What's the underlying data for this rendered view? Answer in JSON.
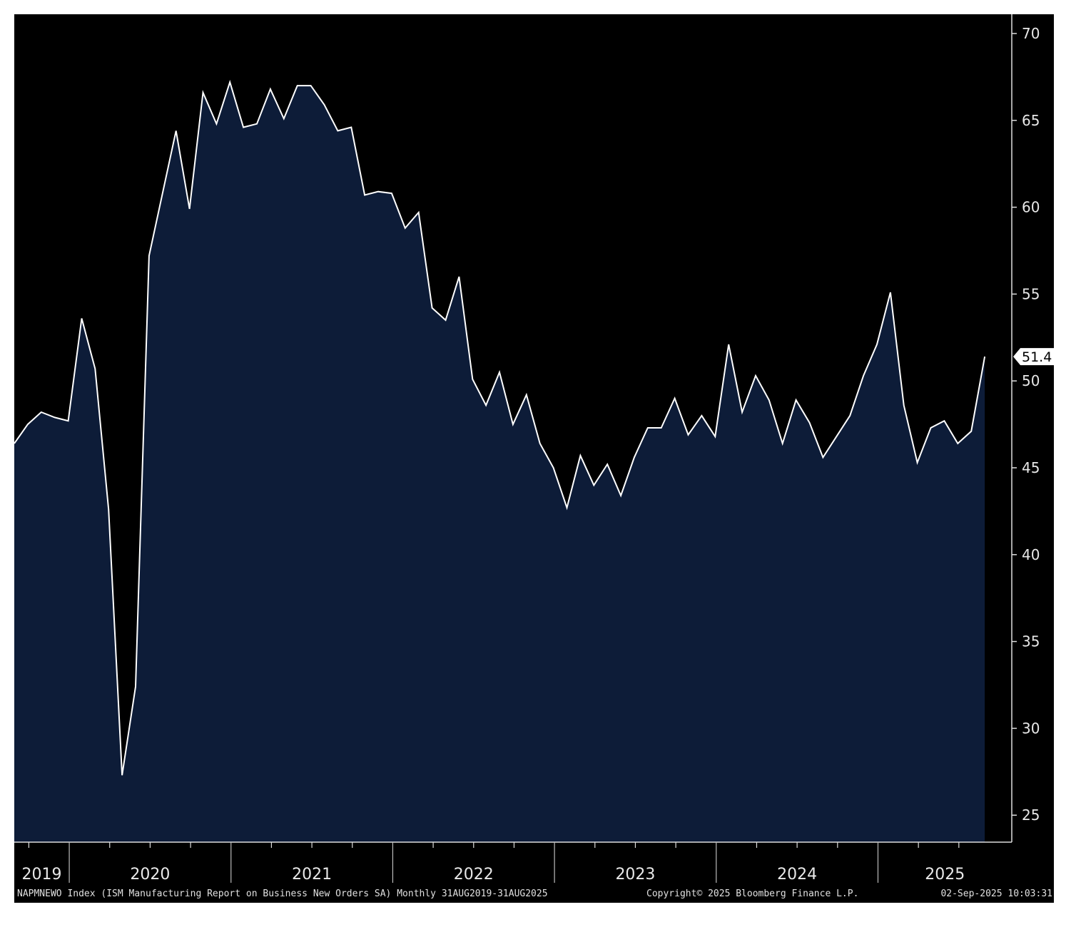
{
  "chart_data": {
    "type": "area",
    "title": "NAPMNEWO Index (ISM Manufacturing Report on Business New Orders SA)",
    "frequency": "Monthly",
    "date_range": "31AUG2019-31AUG2025",
    "x_start": "2019-08",
    "x_end": "2025-08",
    "values": [
      46.4,
      47.5,
      48.2,
      47.9,
      47.7,
      53.6,
      50.7,
      42.6,
      27.3,
      32.4,
      57.2,
      60.8,
      64.4,
      59.9,
      66.6,
      64.8,
      67.2,
      64.6,
      64.8,
      66.8,
      65.1,
      67.0,
      67.0,
      65.9,
      64.4,
      64.6,
      60.7,
      60.9,
      60.8,
      58.8,
      59.7,
      54.2,
      53.5,
      56.0,
      50.1,
      48.6,
      50.5,
      47.5,
      49.2,
      46.4,
      45.0,
      42.7,
      45.7,
      44.0,
      45.2,
      43.4,
      45.6,
      47.3,
      47.3,
      49.0,
      46.9,
      48.0,
      46.8,
      52.1,
      48.2,
      50.3,
      48.9,
      46.4,
      48.9,
      47.6,
      45.6,
      46.8,
      48.0,
      50.3,
      52.1,
      55.1,
      48.6,
      45.3,
      47.3,
      47.7,
      46.4,
      47.1,
      51.4
    ],
    "year_labels": [
      "2019",
      "2020",
      "2021",
      "2022",
      "2023",
      "2024",
      "2025"
    ],
    "y_ticks": [
      "25",
      "30",
      "35",
      "40",
      "45",
      "50",
      "55",
      "60",
      "65",
      "70"
    ],
    "ylim": [
      23.5,
      71
    ],
    "y_axis_side": "right",
    "last_value_label": "51.4",
    "grid": false,
    "colors": {
      "background": "#000000",
      "fill": "#0d1c38",
      "line": "#ffffff"
    }
  },
  "footer": {
    "left": "NAPMNEWO Index (ISM Manufacturing Report on Business New Orders SA)  Monthly 31AUG2019-31AUG2025",
    "center": "Copyright© 2025 Bloomberg Finance L.P.",
    "right": "02-Sep-2025 10:03:31"
  }
}
